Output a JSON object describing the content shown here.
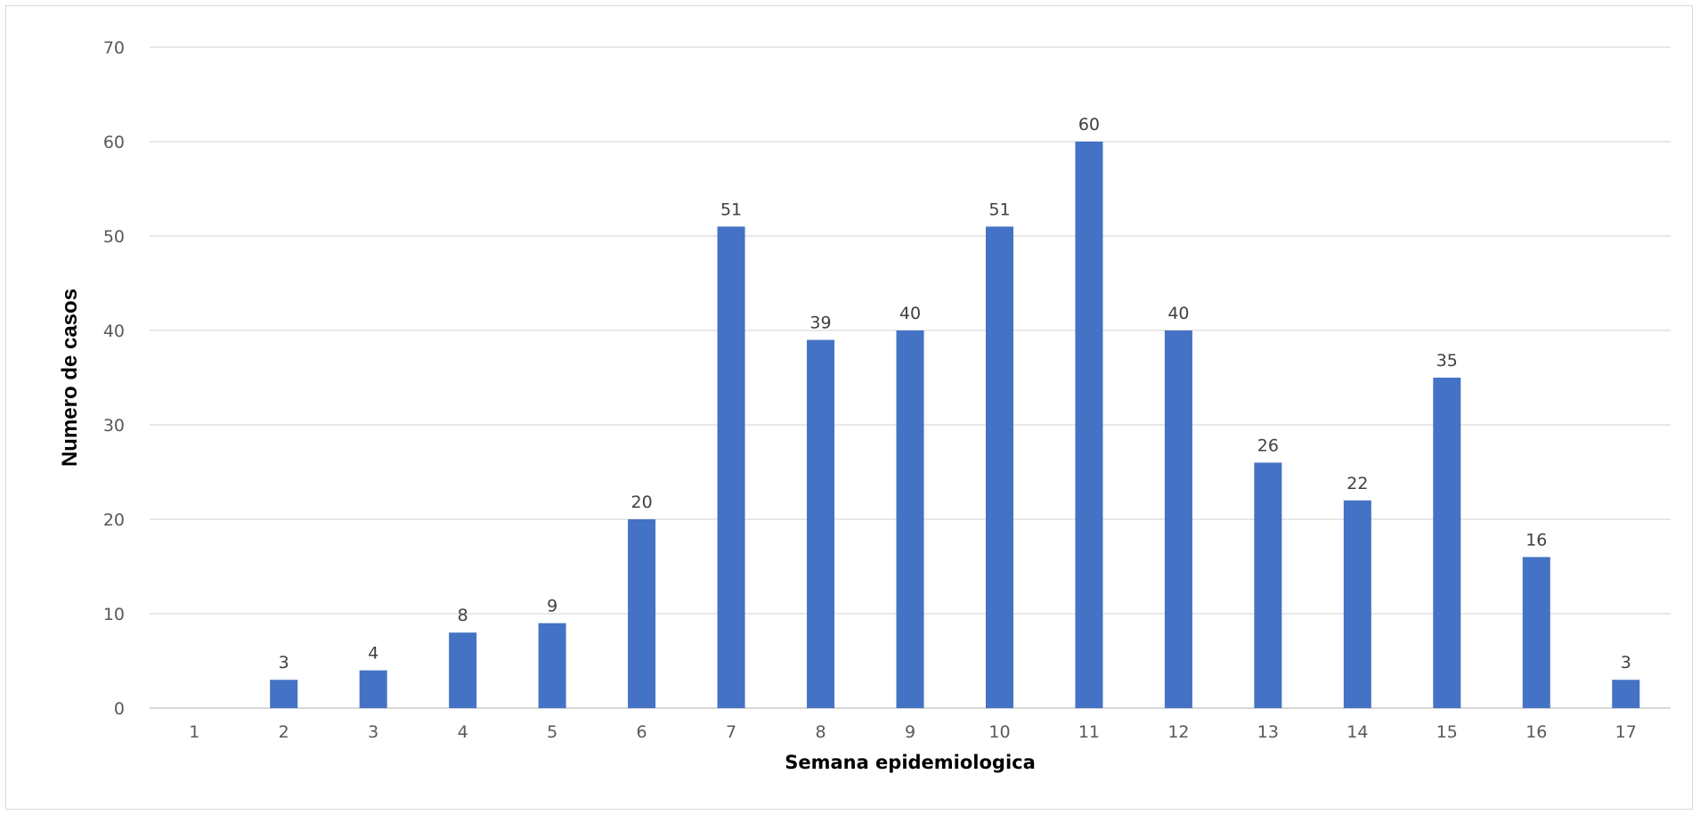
{
  "chart_data": {
    "type": "bar",
    "title": "",
    "xlabel": "Semana epidemiologica",
    "ylabel": "Numero de casos",
    "categories": [
      "1",
      "2",
      "3",
      "4",
      "5",
      "6",
      "7",
      "8",
      "9",
      "10",
      "11",
      "12",
      "13",
      "14",
      "15",
      "16",
      "17"
    ],
    "values": [
      0,
      3,
      4,
      8,
      9,
      20,
      51,
      39,
      40,
      51,
      60,
      40,
      26,
      22,
      35,
      16,
      3
    ],
    "data_labels": [
      "",
      "3",
      "4",
      "8",
      "9",
      "20",
      "51",
      "39",
      "40",
      "51",
      "60",
      "40",
      "26",
      "22",
      "35",
      "16",
      "3"
    ],
    "ylim": [
      0,
      70
    ],
    "yticks": [
      0,
      10,
      20,
      30,
      40,
      50,
      60,
      70
    ],
    "grid": true,
    "legend": "none",
    "colors": {
      "bar": "#4472c4",
      "grid": "#d9d9d9"
    }
  }
}
